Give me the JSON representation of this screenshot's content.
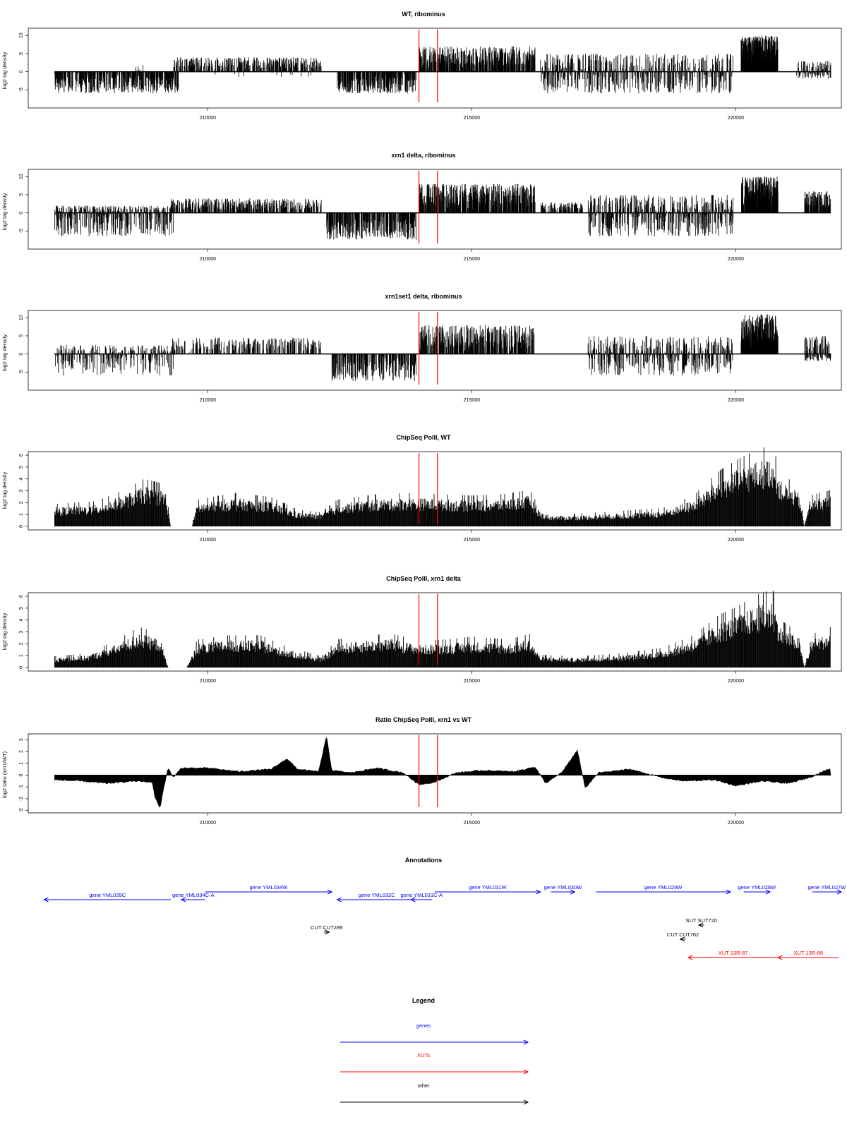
{
  "chart_data": [
    {
      "type": "bar",
      "title": "WT, ribominus",
      "ylabel": "log2 tag density",
      "xlabel": "",
      "x_ticks": [
        210000,
        215000,
        220000
      ],
      "y_ticks": [
        -5,
        0,
        5,
        10
      ],
      "xlim": [
        206600,
        222000
      ],
      "ylim": [
        -10,
        12
      ],
      "baseline": 0,
      "grid": false,
      "markers": [
        214000,
        214350
      ],
      "segments": [
        {
          "x": [
            207100,
            209450
          ],
          "y": [
            -6,
            0
          ],
          "density": 420
        },
        {
          "x": [
            208600,
            208800
          ],
          "y": [
            0,
            2.5
          ],
          "density": 6
        },
        {
          "x": [
            209350,
            212150
          ],
          "y": [
            0,
            4
          ],
          "density": 380
        },
        {
          "x": [
            210000,
            212000
          ],
          "y": [
            -1.5,
            0
          ],
          "density": 12
        },
        {
          "x": [
            212450,
            213950
          ],
          "y": [
            -6,
            0
          ],
          "density": 300
        },
        {
          "x": [
            214000,
            216200
          ],
          "y": [
            0,
            7
          ],
          "density": 460
        },
        {
          "x": [
            216300,
            219950
          ],
          "y": [
            -6,
            5
          ],
          "density": 620
        },
        {
          "x": [
            220100,
            220800
          ],
          "y": [
            0,
            10
          ],
          "density": 360
        },
        {
          "x": [
            221150,
            221800
          ],
          "y": [
            -2,
            3
          ],
          "density": 120
        }
      ]
    },
    {
      "type": "bar",
      "title": "xrn1 delta, ribominus",
      "ylabel": "log2 tag density",
      "xlabel": "",
      "x_ticks": [
        210000,
        215000,
        220000
      ],
      "y_ticks": [
        -5,
        0,
        5,
        10
      ],
      "xlim": [
        206600,
        222000
      ],
      "ylim": [
        -10,
        12
      ],
      "baseline": 0,
      "grid": false,
      "markers": [
        214000,
        214350
      ],
      "segments": [
        {
          "x": [
            207100,
            209350
          ],
          "y": [
            -6.5,
            2
          ],
          "density": 460
        },
        {
          "x": [
            209300,
            212150
          ],
          "y": [
            0,
            4
          ],
          "density": 420
        },
        {
          "x": [
            212250,
            213950
          ],
          "y": [
            -7.5,
            0
          ],
          "density": 340
        },
        {
          "x": [
            214000,
            216200
          ],
          "y": [
            0,
            8
          ],
          "density": 500
        },
        {
          "x": [
            216300,
            217100
          ],
          "y": [
            0,
            3
          ],
          "density": 120
        },
        {
          "x": [
            217200,
            219950
          ],
          "y": [
            -6.5,
            5
          ],
          "density": 560
        },
        {
          "x": [
            220100,
            220800
          ],
          "y": [
            0,
            10
          ],
          "density": 360
        },
        {
          "x": [
            221300,
            221800
          ],
          "y": [
            0,
            6
          ],
          "density": 120
        }
      ]
    },
    {
      "type": "bar",
      "title": "xrn1set1 delta, ribominus",
      "ylabel": "log2 tag density",
      "xlabel": "",
      "x_ticks": [
        210000,
        215000,
        220000
      ],
      "y_ticks": [
        -5,
        0,
        5,
        10
      ],
      "xlim": [
        206600,
        222000
      ],
      "ylim": [
        -10,
        12
      ],
      "baseline": 0,
      "grid": false,
      "markers": [
        214000,
        214350
      ],
      "segments": [
        {
          "x": [
            207100,
            209400
          ],
          "y": [
            -6,
            2.5
          ],
          "density": 300
        },
        {
          "x": [
            209300,
            212150
          ],
          "y": [
            0,
            4.5
          ],
          "density": 240
        },
        {
          "x": [
            212350,
            213950
          ],
          "y": [
            -7.5,
            0
          ],
          "density": 240
        },
        {
          "x": [
            214000,
            216200
          ],
          "y": [
            0,
            8
          ],
          "density": 380
        },
        {
          "x": [
            217200,
            219950
          ],
          "y": [
            -6,
            5
          ],
          "density": 440
        },
        {
          "x": [
            220100,
            220800
          ],
          "y": [
            0,
            11
          ],
          "density": 300
        },
        {
          "x": [
            221300,
            221800
          ],
          "y": [
            -2,
            5
          ],
          "density": 120
        }
      ]
    },
    {
      "type": "bar",
      "title": "ChipSeq PolII, WT",
      "ylabel": "log2 tag density",
      "xlabel": "",
      "x_ticks": [
        210000,
        215000,
        220000
      ],
      "y_ticks": [
        0,
        1,
        2,
        3,
        4,
        5,
        6
      ],
      "xlim": [
        206600,
        222000
      ],
      "ylim": [
        -0.3,
        6.3
      ],
      "baseline": 0,
      "grid": false,
      "markers": [
        214000,
        214350
      ],
      "profile": [
        [
          207100,
          1.6
        ],
        [
          207900,
          1.8
        ],
        [
          208400,
          2.6
        ],
        [
          208800,
          3.4
        ],
        [
          209200,
          3.0
        ],
        [
          209300,
          0
        ],
        [
          209700,
          0
        ],
        [
          209800,
          1.9
        ],
        [
          210500,
          2.4
        ],
        [
          211200,
          2.1
        ],
        [
          211700,
          1.2
        ],
        [
          212150,
          1.0
        ],
        [
          212450,
          1.9
        ],
        [
          213200,
          2.3
        ],
        [
          214000,
          2.4
        ],
        [
          214400,
          2.3
        ],
        [
          215000,
          2.2
        ],
        [
          215600,
          2.3
        ],
        [
          216100,
          2.6
        ],
        [
          216300,
          1.2
        ],
        [
          216500,
          0.9
        ],
        [
          217000,
          0.9
        ],
        [
          217800,
          1.1
        ],
        [
          218600,
          1.3
        ],
        [
          219200,
          2.2
        ],
        [
          219700,
          4.0
        ],
        [
          220000,
          4.7
        ],
        [
          220400,
          5.5
        ],
        [
          220700,
          5.8
        ],
        [
          220850,
          3.8
        ],
        [
          221000,
          3.4
        ],
        [
          221200,
          2.8
        ],
        [
          221300,
          0
        ],
        [
          221400,
          2.2
        ],
        [
          221800,
          2.6
        ]
      ]
    },
    {
      "type": "bar",
      "title": "ChipSeq PolII, xrn1 delta",
      "ylabel": "log2 tag density",
      "xlabel": "",
      "x_ticks": [
        210000,
        215000,
        220000
      ],
      "y_ticks": [
        0,
        1,
        2,
        3,
        4,
        5,
        6
      ],
      "xlim": [
        206600,
        222000
      ],
      "ylim": [
        -0.3,
        6.3
      ],
      "baseline": 0,
      "grid": false,
      "markers": [
        214000,
        214350
      ],
      "profile": [
        [
          207100,
          0.8
        ],
        [
          207700,
          1.0
        ],
        [
          208200,
          1.8
        ],
        [
          208700,
          2.9
        ],
        [
          209100,
          2.4
        ],
        [
          209250,
          0
        ],
        [
          209600,
          0
        ],
        [
          209800,
          2.0
        ],
        [
          210400,
          2.3
        ],
        [
          211000,
          2.3
        ],
        [
          211500,
          1.5
        ],
        [
          212150,
          0.8
        ],
        [
          212450,
          2.0
        ],
        [
          213000,
          2.3
        ],
        [
          213500,
          2.4
        ],
        [
          214000,
          1.9
        ],
        [
          214500,
          2.0
        ],
        [
          215000,
          2.2
        ],
        [
          215700,
          2.0
        ],
        [
          216100,
          2.4
        ],
        [
          216300,
          0.9
        ],
        [
          217000,
          0.8
        ],
        [
          217800,
          1.0
        ],
        [
          218600,
          1.4
        ],
        [
          219200,
          2.3
        ],
        [
          219700,
          3.8
        ],
        [
          220000,
          4.3
        ],
        [
          220400,
          5.2
        ],
        [
          220700,
          5.6
        ],
        [
          220850,
          3.4
        ],
        [
          221000,
          3.0
        ],
        [
          221200,
          2.5
        ],
        [
          221300,
          0
        ],
        [
          221450,
          2.4
        ],
        [
          221800,
          2.9
        ]
      ]
    },
    {
      "type": "area",
      "title": "Ratio ChipSeq PolII, xrn1 vs WT",
      "ylabel": "log2 ratio (xrn1/WT)",
      "xlabel": "",
      "x_ticks": [
        210000,
        215000,
        220000
      ],
      "y_ticks": [
        -3,
        -2,
        -1,
        0,
        1,
        2,
        3
      ],
      "xlim": [
        206600,
        222000
      ],
      "ylim": [
        -3.2,
        3.5
      ],
      "baseline": 0,
      "grid": false,
      "markers": [
        214000,
        214350
      ],
      "profile": [
        [
          207100,
          -0.4
        ],
        [
          207600,
          -0.5
        ],
        [
          208100,
          -0.7
        ],
        [
          208600,
          -0.5
        ],
        [
          208950,
          -0.6
        ],
        [
          209000,
          -1.9
        ],
        [
          209100,
          -2.8
        ],
        [
          209150,
          -1.4
        ],
        [
          209250,
          0.6
        ],
        [
          209350,
          -0.2
        ],
        [
          209500,
          0.6
        ],
        [
          210000,
          0.6
        ],
        [
          210600,
          0.3
        ],
        [
          211200,
          0.5
        ],
        [
          211500,
          1.4
        ],
        [
          211700,
          0.5
        ],
        [
          212100,
          0.3
        ],
        [
          212250,
          3.3
        ],
        [
          212350,
          0.4
        ],
        [
          212700,
          0.2
        ],
        [
          213200,
          0.6
        ],
        [
          213700,
          0.2
        ],
        [
          214000,
          -0.8
        ],
        [
          214300,
          -0.6
        ],
        [
          214700,
          0.2
        ],
        [
          215200,
          0.4
        ],
        [
          215800,
          0.3
        ],
        [
          216200,
          0.7
        ],
        [
          216400,
          -0.7
        ],
        [
          216700,
          0.2
        ],
        [
          217000,
          2.1
        ],
        [
          217150,
          -1.1
        ],
        [
          217400,
          0.2
        ],
        [
          218000,
          0.5
        ],
        [
          218600,
          -0.2
        ],
        [
          219000,
          -0.5
        ],
        [
          219600,
          -0.4
        ],
        [
          220000,
          -0.9
        ],
        [
          220500,
          -0.5
        ],
        [
          221000,
          -0.7
        ],
        [
          221400,
          -0.2
        ],
        [
          221800,
          0.6
        ]
      ]
    }
  ],
  "annotations": {
    "title": "Annotations",
    "xlim": [
      206600,
      222000
    ],
    "features": [
      {
        "label": "gene YML035C",
        "kind": "gene",
        "start": 206900,
        "end": 209300,
        "dir": "left",
        "row": 2
      },
      {
        "label": "gene YML034C-A",
        "kind": "gene",
        "start": 209500,
        "end": 209950,
        "dir": "left",
        "row": 2
      },
      {
        "label": "gene YML034W",
        "kind": "gene",
        "start": 209950,
        "end": 212350,
        "dir": "right",
        "row": 1
      },
      {
        "label": "gene YML032C",
        "kind": "gene",
        "start": 212450,
        "end": 213950,
        "dir": "left",
        "row": 2
      },
      {
        "label": "gene YML031C-A",
        "kind": "gene",
        "start": 213850,
        "end": 214250,
        "dir": "left",
        "row": 2
      },
      {
        "label": "gene YML031W",
        "kind": "gene",
        "start": 214300,
        "end": 216300,
        "dir": "right",
        "row": 1
      },
      {
        "label": "gene YML030W",
        "kind": "gene",
        "start": 216500,
        "end": 216950,
        "dir": "right",
        "row": 1
      },
      {
        "label": "gene YML029W",
        "kind": "gene",
        "start": 217350,
        "end": 219900,
        "dir": "right",
        "row": 1
      },
      {
        "label": "gene YML028W",
        "kind": "gene",
        "start": 220150,
        "end": 220650,
        "dir": "right",
        "row": 1
      },
      {
        "label": "gene YML027W",
        "kind": "gene",
        "start": 221450,
        "end": 222000,
        "dir": "right",
        "row": 1
      },
      {
        "label": "CUT CUT289",
        "kind": "other",
        "start": 212200,
        "end": 212300,
        "dir": "right",
        "row": 3
      },
      {
        "label": "SUT SUT720",
        "kind": "other",
        "start": 219300,
        "end": 219400,
        "dir": "left",
        "row": 4
      },
      {
        "label": "CUT CUT762",
        "kind": "other",
        "start": 218950,
        "end": 219050,
        "dir": "left",
        "row": 5
      },
      {
        "label": "XUT 13R-87",
        "kind": "xut",
        "start": 219100,
        "end": 220800,
        "dir": "left",
        "row": 6
      },
      {
        "label": "XUT 13R-88",
        "kind": "xut",
        "start": 220800,
        "end": 221950,
        "dir": "left",
        "row": 6
      }
    ]
  },
  "legend": {
    "title": "Legend",
    "items": [
      {
        "label": "genes",
        "color": "#0000ff"
      },
      {
        "label": "XUTs",
        "color": "#ff0000"
      },
      {
        "label": "other",
        "color": "#000000"
      }
    ]
  },
  "colors": {
    "marker": "#ff0000",
    "gene": "#0000ff",
    "xut": "#ff0000",
    "other": "#000000",
    "bar": "#000000"
  }
}
